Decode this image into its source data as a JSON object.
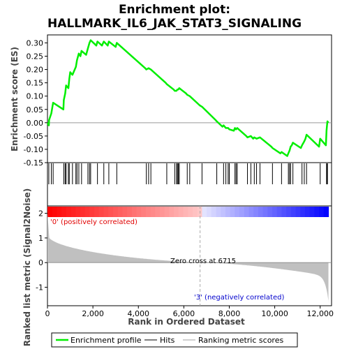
{
  "chart_data": {
    "type": "line",
    "title_line1": "Enrichment plot:",
    "title_line2": "HALLMARK_IL6_JAK_STAT3_SIGNALING",
    "xlabel": "Rank in Ordered Dataset",
    "ylabel_top": "Enrichment score (ES)",
    "ylabel_bottom": "Ranked list metric (Signal2Noise)",
    "xlim": [
      0,
      12500
    ],
    "es_ylim": [
      -0.15,
      0.33
    ],
    "metric_ylim": [
      -1.75,
      2.3
    ],
    "x_ticks": [
      0,
      2000,
      4000,
      6000,
      8000,
      10000,
      12000
    ],
    "x_tick_labels": [
      "0",
      "2,000",
      "4,000",
      "6,000",
      "8,000",
      "10,000",
      "12,000"
    ],
    "es_ticks": [
      -0.15,
      -0.1,
      -0.05,
      0.0,
      0.05,
      0.1,
      0.15,
      0.2,
      0.25,
      0.3
    ],
    "es_tick_labels": [
      "-0.15",
      "-0.10",
      "-0.05",
      "0.00",
      "0.05",
      "0.10",
      "0.15",
      "0.20",
      "0.25",
      "0.30"
    ],
    "metric_ticks": [
      2,
      1,
      0,
      -1
    ],
    "metric_tick_labels": [
      "2",
      "1",
      "0",
      "-1"
    ],
    "annotations": {
      "positive": "'0' (positively correlated)",
      "negative": "'3' (negatively correlated)",
      "zero_cross": "Zero cross at 6715"
    },
    "zero_cross": 6715,
    "n_genes": 12363,
    "hits": [
      60,
      170,
      250,
      720,
      780,
      820,
      920,
      960,
      1100,
      1250,
      1300,
      1380,
      1500,
      1780,
      1850,
      1900,
      2200,
      2480,
      2700,
      3050,
      4350,
      4450,
      4550,
      5250,
      5600,
      5680,
      5720,
      5760,
      5800,
      6150,
      6260,
      6800,
      7450,
      7750,
      7850,
      7950,
      8000,
      8250,
      8300,
      8350,
      8800,
      8950,
      9100,
      9200,
      9350,
      9900,
      10300,
      10600,
      10650,
      10700,
      10800,
      11200,
      11300,
      11400,
      12000,
      12280,
      12300,
      12320
    ],
    "es_curve": [
      [
        0,
        0
      ],
      [
        60,
        -0.01
      ],
      [
        70,
        0.01
      ],
      [
        170,
        0.035
      ],
      [
        250,
        0.075
      ],
      [
        700,
        0.05
      ],
      [
        720,
        0.085
      ],
      [
        780,
        0.11
      ],
      [
        820,
        0.14
      ],
      [
        920,
        0.13
      ],
      [
        960,
        0.165
      ],
      [
        1000,
        0.19
      ],
      [
        1100,
        0.18
      ],
      [
        1250,
        0.21
      ],
      [
        1300,
        0.235
      ],
      [
        1380,
        0.26
      ],
      [
        1450,
        0.25
      ],
      [
        1500,
        0.27
      ],
      [
        1700,
        0.255
      ],
      [
        1780,
        0.28
      ],
      [
        1850,
        0.3
      ],
      [
        1900,
        0.31
      ],
      [
        2150,
        0.29
      ],
      [
        2200,
        0.305
      ],
      [
        2400,
        0.29
      ],
      [
        2480,
        0.305
      ],
      [
        2650,
        0.29
      ],
      [
        2700,
        0.305
      ],
      [
        3000,
        0.285
      ],
      [
        3050,
        0.3
      ],
      [
        4300,
        0.205
      ],
      [
        4350,
        0.2
      ],
      [
        4450,
        0.205
      ],
      [
        4550,
        0.2
      ],
      [
        5200,
        0.15
      ],
      [
        5250,
        0.145
      ],
      [
        5550,
        0.125
      ],
      [
        5600,
        0.12
      ],
      [
        5680,
        0.12
      ],
      [
        5720,
        0.125
      ],
      [
        5760,
        0.125
      ],
      [
        5800,
        0.13
      ],
      [
        6100,
        0.11
      ],
      [
        6150,
        0.105
      ],
      [
        6260,
        0.1
      ],
      [
        6700,
        0.065
      ],
      [
        6800,
        0.06
      ],
      [
        7400,
        0.01
      ],
      [
        7450,
        0.005
      ],
      [
        7700,
        -0.015
      ],
      [
        7750,
        -0.01
      ],
      [
        7850,
        -0.02
      ],
      [
        7950,
        -0.02
      ],
      [
        8000,
        -0.025
      ],
      [
        8200,
        -0.03
      ],
      [
        8250,
        -0.02
      ],
      [
        8300,
        -0.025
      ],
      [
        8350,
        -0.02
      ],
      [
        8750,
        -0.05
      ],
      [
        8800,
        -0.055
      ],
      [
        8950,
        -0.05
      ],
      [
        9050,
        -0.06
      ],
      [
        9100,
        -0.055
      ],
      [
        9200,
        -0.06
      ],
      [
        9350,
        -0.055
      ],
      [
        9850,
        -0.09
      ],
      [
        9900,
        -0.095
      ],
      [
        10250,
        -0.115
      ],
      [
        10300,
        -0.11
      ],
      [
        10550,
        -0.125
      ],
      [
        10600,
        -0.115
      ],
      [
        10650,
        -0.105
      ],
      [
        10700,
        -0.09
      ],
      [
        10750,
        -0.085
      ],
      [
        10800,
        -0.075
      ],
      [
        11150,
        -0.095
      ],
      [
        11200,
        -0.085
      ],
      [
        11300,
        -0.07
      ],
      [
        11350,
        -0.06
      ],
      [
        11400,
        -0.045
      ],
      [
        11950,
        -0.09
      ],
      [
        12000,
        -0.06
      ],
      [
        12250,
        -0.085
      ],
      [
        12280,
        -0.03
      ],
      [
        12300,
        -0.01
      ],
      [
        12320,
        0.005
      ],
      [
        12363,
        0.0
      ]
    ],
    "legend": {
      "entries": [
        {
          "label": "Enrichment profile",
          "color": "#00cc00"
        },
        {
          "label": "Hits",
          "color": "#000000"
        },
        {
          "label": "Ranking metric scores",
          "color": "#c0c0c0"
        }
      ]
    },
    "colors": {
      "es_line": "#00ee00",
      "metric_fill": "#c0c0c0",
      "positive_bar": "#ff0000",
      "negative_bar": "#0000ff",
      "hit_line": "#000000"
    }
  }
}
